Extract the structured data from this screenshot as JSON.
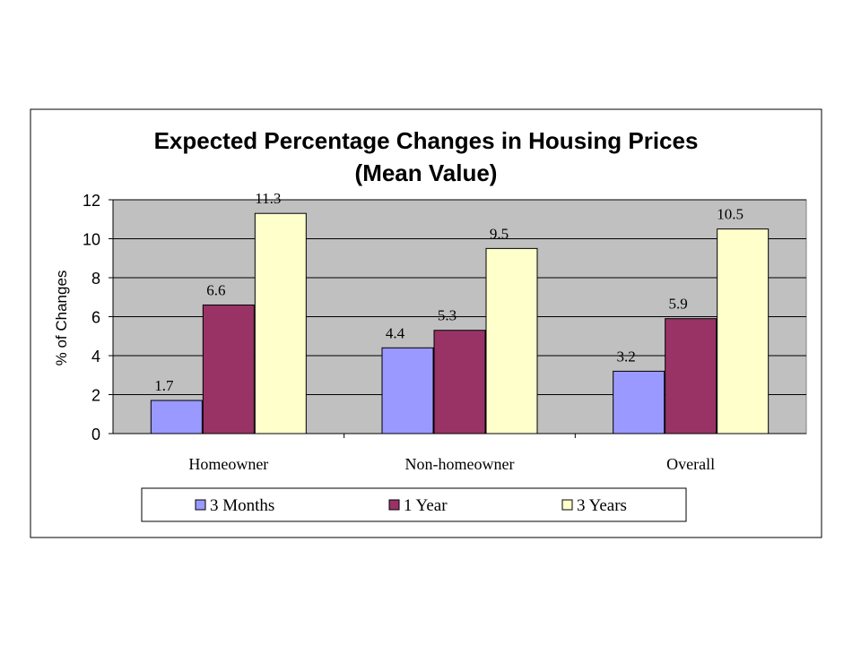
{
  "chart_data": {
    "type": "bar",
    "title": "Expected Percentage Changes in Housing Prices",
    "subtitle": "(Mean Value)",
    "xlabel": "",
    "ylabel": "% of Changes",
    "ylim": [
      0,
      12
    ],
    "yticks": [
      "0",
      "2",
      "4",
      "6",
      "8",
      "10",
      "12"
    ],
    "categories": [
      "Homeowner",
      "Non-homeowner",
      "Overall"
    ],
    "series": [
      {
        "name": "3 Months",
        "values": [
          1.7,
          4.4,
          3.2
        ],
        "labels": [
          "1.7",
          "4.4",
          "3.2"
        ],
        "color": "#9999ff"
      },
      {
        "name": "1 Year",
        "values": [
          6.6,
          5.3,
          5.9
        ],
        "labels": [
          "6.6",
          "5.3",
          "5.9"
        ],
        "color": "#993366"
      },
      {
        "name": "3 Years",
        "values": [
          11.3,
          9.5,
          10.5
        ],
        "labels": [
          "11.3",
          "9.5",
          "10.5"
        ],
        "color": "#ffffcc"
      }
    ],
    "grid": true,
    "plot_background": "#c0c0c0",
    "legend_position": "bottom"
  }
}
